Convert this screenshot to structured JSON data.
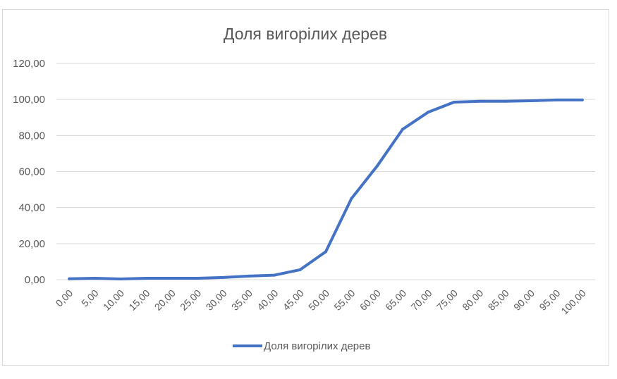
{
  "chart_data": {
    "type": "line",
    "title": "Доля вигорілих дерев",
    "xlabel": "",
    "ylabel": "",
    "x": [
      "0,00",
      "5,00",
      "10,00",
      "15,00",
      "20,00",
      "25,00",
      "30,00",
      "35,00",
      "40,00",
      "45,00",
      "50,00",
      "55,00",
      "60,00",
      "65,00",
      "70,00",
      "75,00",
      "80,00",
      "85,00",
      "90,00",
      "95,00",
      "100,00"
    ],
    "series": [
      {
        "name": "Доля вигорілих дерев",
        "values": [
          0.5,
          0.8,
          0.4,
          0.8,
          0.8,
          0.8,
          1.2,
          2.0,
          2.5,
          5.5,
          15.5,
          45.0,
          63.0,
          83.5,
          93.0,
          98.5,
          99.0,
          99.0,
          99.3,
          99.7,
          99.7
        ]
      }
    ],
    "ylim": [
      0,
      120
    ],
    "yticks": [
      "0,00",
      "20,00",
      "40,00",
      "60,00",
      "80,00",
      "100,00",
      "120,00"
    ],
    "grid": true,
    "legend": "bottom",
    "colors": {
      "line": "#4472c4",
      "grid": "#d9d9d9",
      "text": "#595959"
    }
  }
}
